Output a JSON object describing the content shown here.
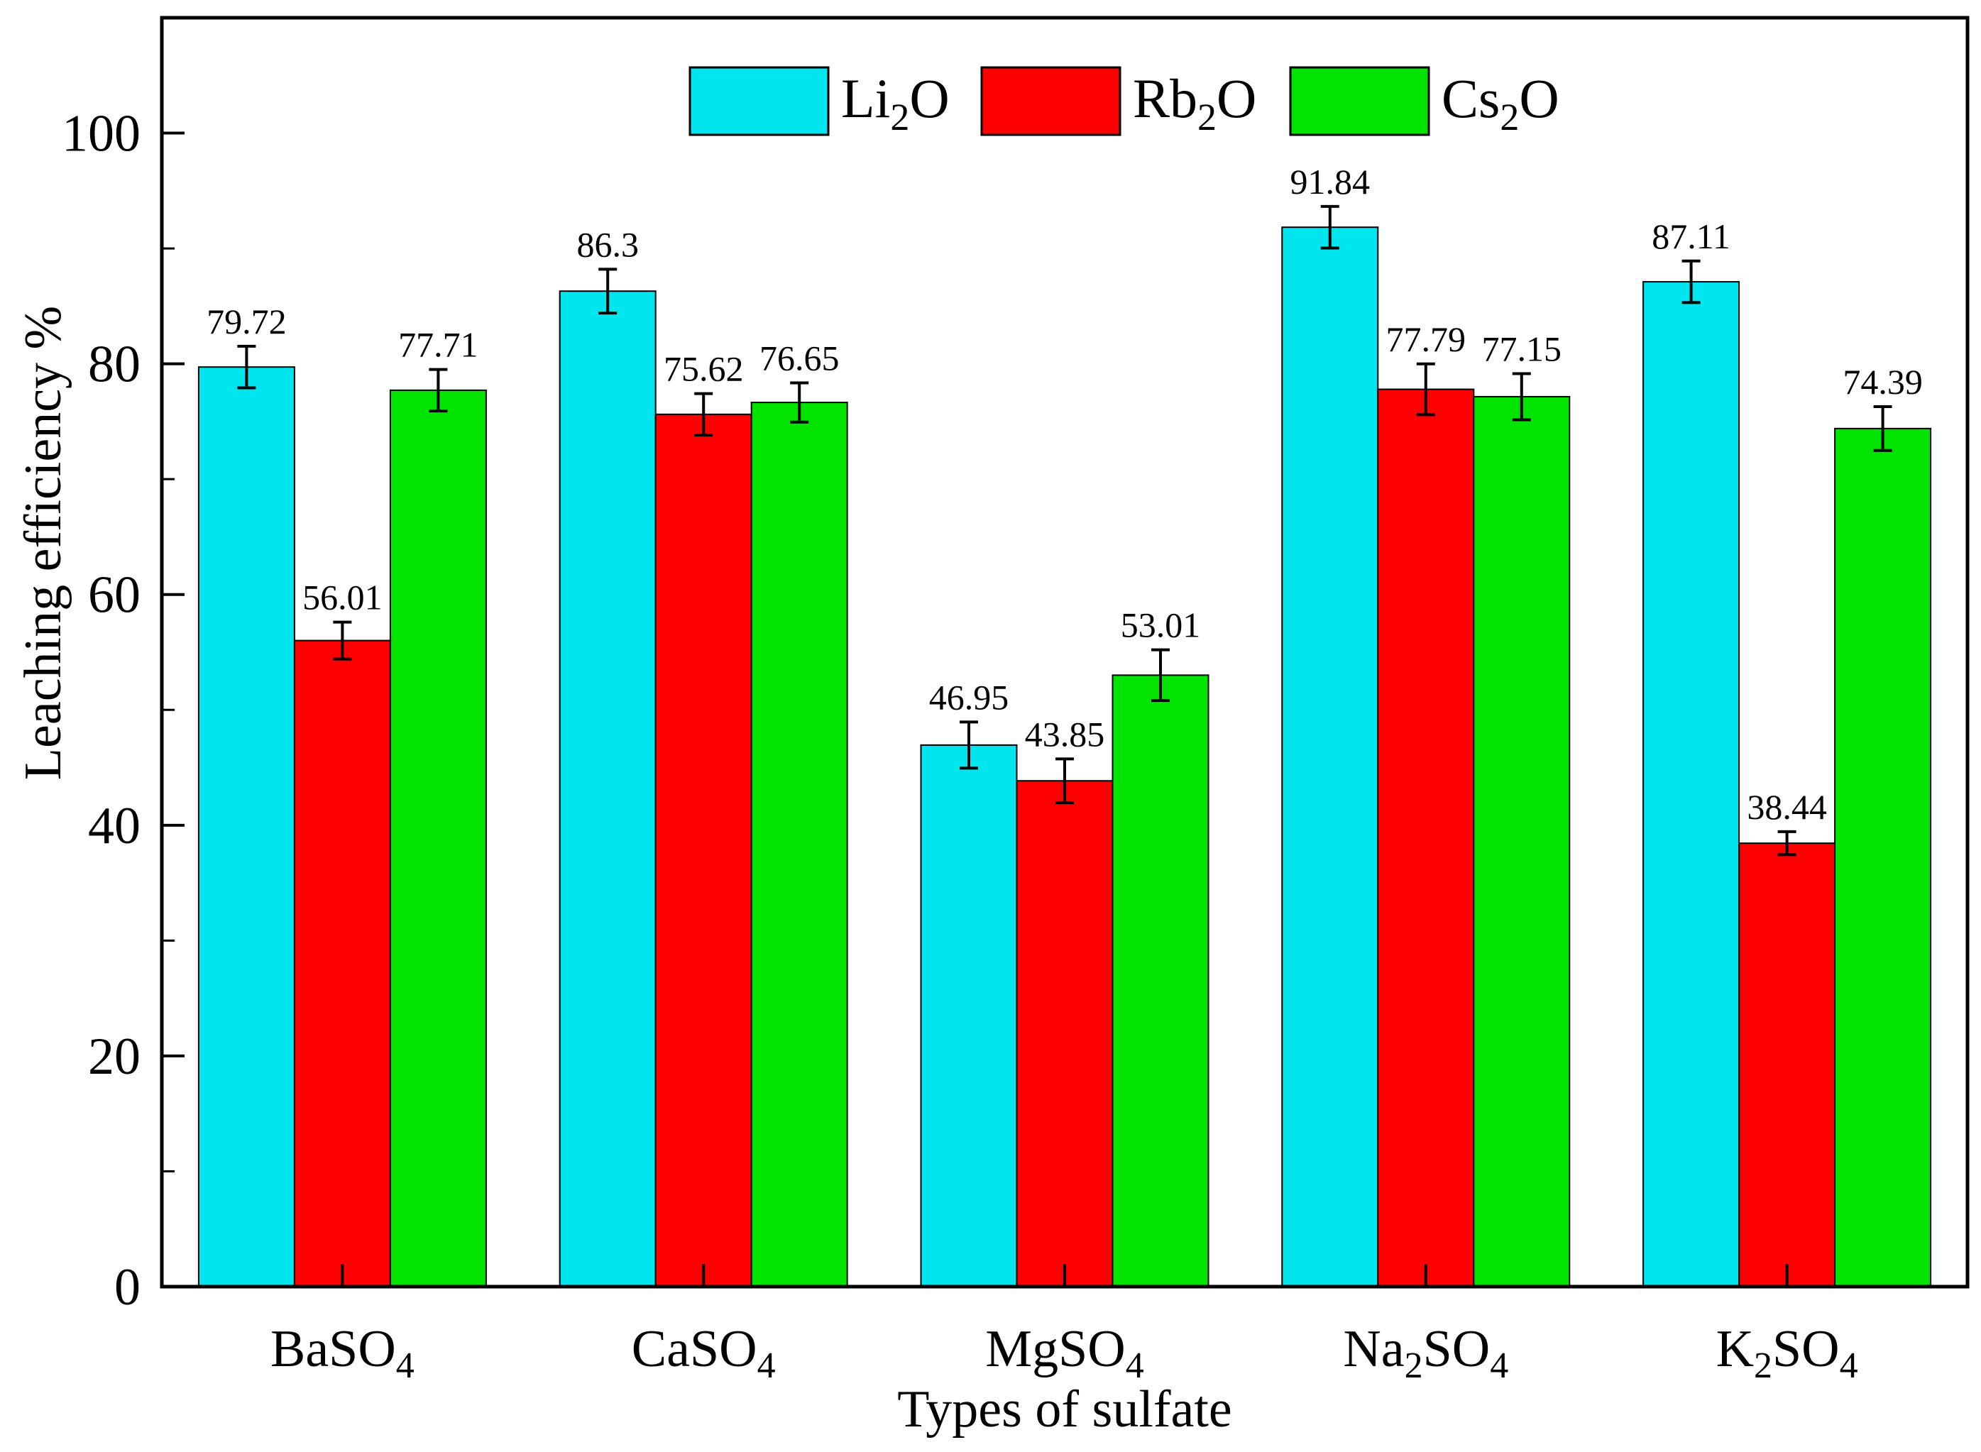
{
  "chart_data": {
    "type": "bar",
    "xlabel": "Types of sulfate",
    "ylabel": "Leaching efficiency %",
    "ylim": [
      0,
      110
    ],
    "yticks": [
      0,
      20,
      40,
      60,
      80,
      100
    ],
    "ytick_labels": [
      "0",
      "20",
      "40",
      "60",
      "80",
      "100"
    ],
    "grid": false,
    "legend_position": "top-center",
    "categories": [
      {
        "base": "BaSO",
        "sub": "4",
        "post": ""
      },
      {
        "base": "CaSO",
        "sub": "4",
        "post": ""
      },
      {
        "base": "MgSO",
        "sub": "4",
        "post": ""
      },
      {
        "base": "Na",
        "sub": "2",
        "post": "SO4"
      },
      {
        "base": "K",
        "sub": "2",
        "post": "SO4"
      }
    ],
    "series": [
      {
        "name": "Li2O",
        "name_base": "Li",
        "name_sub": "2",
        "name_post": "O",
        "color": "#00e5ee",
        "values": [
          79.72,
          86.3,
          46.95,
          91.84,
          87.11
        ],
        "labels": [
          "79.72",
          "86.3",
          "46.95",
          "91.84",
          "87.11"
        ],
        "errors": [
          1.8,
          1.9,
          2.0,
          1.8,
          1.8
        ]
      },
      {
        "name": "Rb2O",
        "name_base": "Rb",
        "name_sub": "2",
        "name_post": "O",
        "color": "#ff0000",
        "values": [
          56.01,
          75.62,
          43.85,
          77.79,
          38.44
        ],
        "labels": [
          "56.01",
          "75.62",
          "43.85",
          "77.79",
          "38.44"
        ],
        "errors": [
          1.6,
          1.8,
          1.9,
          2.2,
          1.0
        ]
      },
      {
        "name": "Cs2O",
        "name_base": "Cs",
        "name_sub": "2",
        "name_post": "O",
        "color": "#00e400",
        "values": [
          77.71,
          76.65,
          53.01,
          77.15,
          74.39
        ],
        "labels": [
          "77.71",
          "76.65",
          "53.01",
          "77.15",
          "74.39"
        ],
        "errors": [
          1.8,
          1.7,
          2.2,
          2.0,
          1.9
        ]
      }
    ]
  }
}
